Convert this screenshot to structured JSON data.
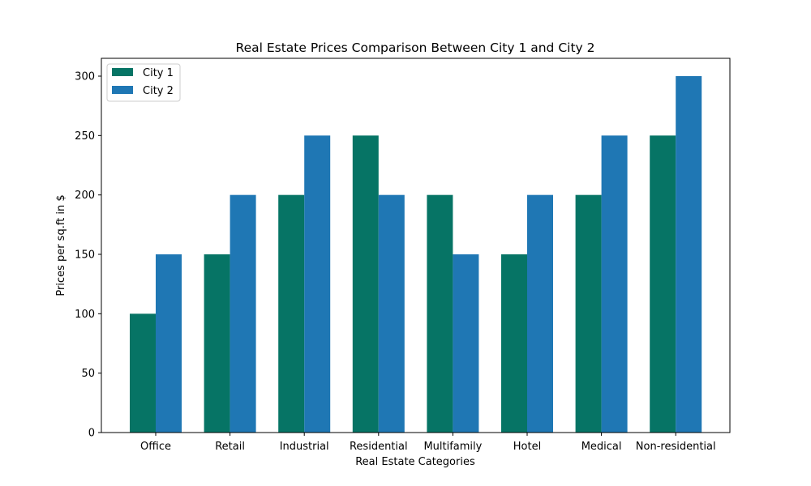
{
  "chart_data": {
    "type": "bar",
    "title": "Real Estate Prices Comparison Between City 1 and City 2",
    "xlabel": "Real Estate Categories",
    "ylabel": "Prices per sq.ft in $",
    "categories": [
      "Office",
      "Retail",
      "Industrial",
      "Residential",
      "Multifamily",
      "Hotel",
      "Medical",
      "Non-residential"
    ],
    "series": [
      {
        "name": "City 1",
        "color": "#067465",
        "values": [
          100,
          150,
          200,
          250,
          200,
          150,
          200,
          250
        ]
      },
      {
        "name": "City 2",
        "color": "#1f77b4",
        "values": [
          150,
          200,
          250,
          200,
          150,
          200,
          250,
          300
        ]
      }
    ],
    "ylim": [
      0,
      315
    ],
    "yticks": [
      0,
      50,
      100,
      150,
      200,
      250,
      300
    ],
    "grid": false,
    "legend": "top-left"
  }
}
